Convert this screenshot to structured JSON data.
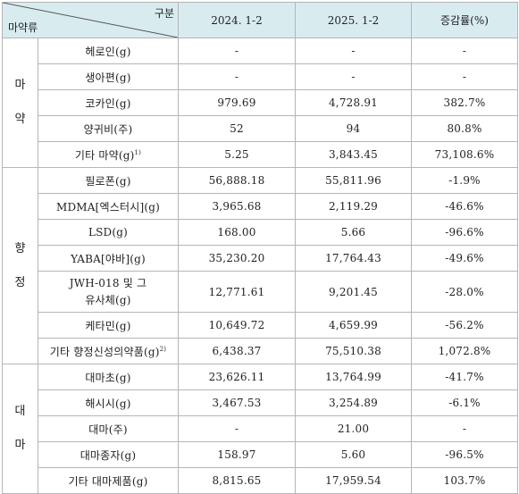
{
  "header": {
    "top_right": "구분",
    "bottom_left": "마약류",
    "col1": "2024. 1-2",
    "col2": "2025. 1-2",
    "col3": "증감률(%)"
  },
  "groups": [
    {
      "chars": [
        "마",
        "약"
      ],
      "rows": [
        {
          "item": "헤로인(g)",
          "sup": "",
          "y2024": "-",
          "y2025": "-",
          "change": "-"
        },
        {
          "item": "생아편(g)",
          "sup": "",
          "y2024": "-",
          "y2025": "-",
          "change": "-"
        },
        {
          "item": "코카인(g)",
          "sup": "",
          "y2024": "979.69",
          "y2025": "4,728.91",
          "change": "382.7%"
        },
        {
          "item": "양귀비(주)",
          "sup": "",
          "y2024": "52",
          "y2025": "94",
          "change": "80.8%"
        },
        {
          "item": "기타 마약(g)",
          "sup": "1)",
          "y2024": "5.25",
          "y2025": "3,843.45",
          "change": "73,108.6%"
        }
      ]
    },
    {
      "chars": [
        "향",
        "정"
      ],
      "rows": [
        {
          "item": "필로폰(g)",
          "sup": "",
          "y2024": "56,888.18",
          "y2025": "55,811.96",
          "change": "-1.9%"
        },
        {
          "item": "MDMA[엑스터시](g)",
          "sup": "",
          "y2024": "3,965.68",
          "y2025": "2,119.29",
          "change": "-46.6%"
        },
        {
          "item": "LSD(g)",
          "sup": "",
          "y2024": "168.00",
          "y2025": "5.66",
          "change": "-96.6%"
        },
        {
          "item": "YABA[야바](g)",
          "sup": "",
          "y2024": "35,230.20",
          "y2025": "17,764.43",
          "change": "-49.6%"
        },
        {
          "item": "JWH-018 및 그 유사체(g)",
          "sup": "",
          "y2024": "12,771.61",
          "y2025": "9,201.45",
          "change": "-28.0%",
          "tall": true
        },
        {
          "item": "케타민(g)",
          "sup": "",
          "y2024": "10,649.72",
          "y2025": "4,659.99",
          "change": "-56.2%"
        },
        {
          "item": "기타 향정신성의약품(g)",
          "sup": "2)",
          "y2024": "6,438.37",
          "y2025": "75,510.38",
          "change": "1,072.8%"
        }
      ]
    },
    {
      "chars": [
        "대",
        "마"
      ],
      "rows": [
        {
          "item": "대마초(g)",
          "sup": "",
          "y2024": "23,626.11",
          "y2025": "13,764.99",
          "change": "-41.7%"
        },
        {
          "item": "해시시(g)",
          "sup": "",
          "y2024": "3,467.53",
          "y2025": "3,254.89",
          "change": "-6.1%"
        },
        {
          "item": "대마(주)",
          "sup": "",
          "y2024": "-",
          "y2025": "21.00",
          "change": "-"
        },
        {
          "item": "대마종자(g)",
          "sup": "",
          "y2024": "158.97",
          "y2025": "5.60",
          "change": "-96.5%"
        },
        {
          "item": "기타 대마제품(g)",
          "sup": "",
          "y2024": "8,815.65",
          "y2025": "17,959.54",
          "change": "103.7%"
        }
      ]
    }
  ]
}
